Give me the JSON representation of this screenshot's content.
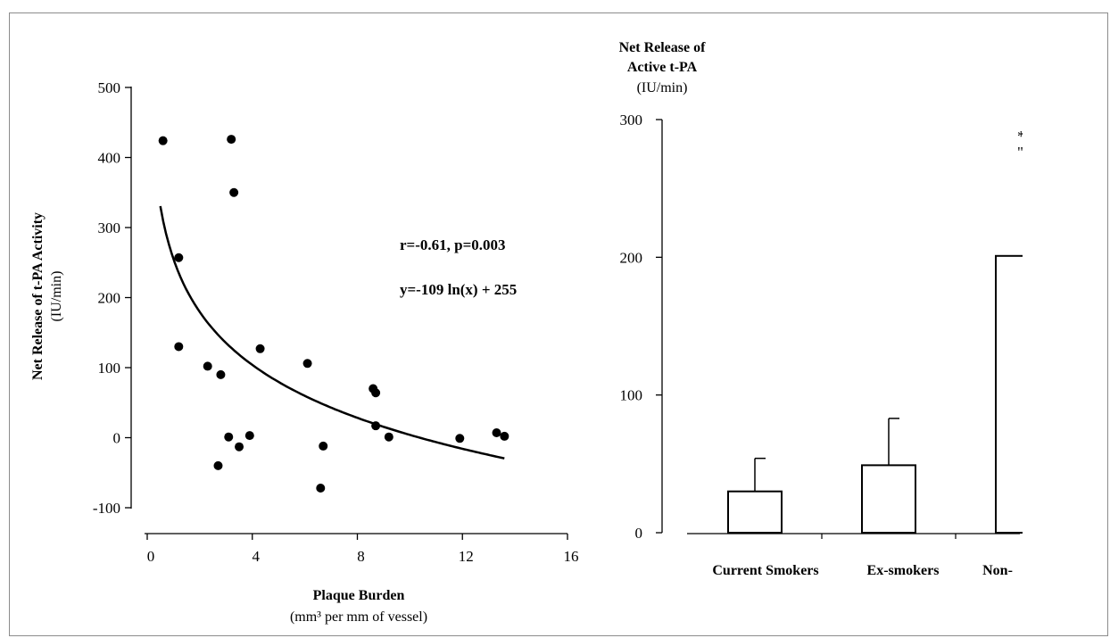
{
  "chart_data": [
    {
      "type": "scatter",
      "title": "",
      "xlabel": "Plaque Burden",
      "xlabel_unit": "(mm³ per mm of vessel)",
      "ylabel": "Net Release of t-PA Activity",
      "ylabel_unit": "(IU/min)",
      "xlim": [
        0,
        16
      ],
      "ylim": [
        -100,
        500
      ],
      "xticks": [
        "0",
        "4",
        "8",
        "12",
        "16"
      ],
      "yticks": [
        "500",
        "400",
        "300",
        "200",
        "100",
        "0",
        "-100"
      ],
      "annotation_1": "r=-0.61, p=0.003",
      "annotation_2": "y=-109 ln(x) + 255",
      "grid": false,
      "points": [
        {
          "x": 0.6,
          "y": 424
        },
        {
          "x": 3.2,
          "y": 426
        },
        {
          "x": 3.3,
          "y": 350
        },
        {
          "x": 1.2,
          "y": 257
        },
        {
          "x": 1.2,
          "y": 130
        },
        {
          "x": 2.3,
          "y": 102
        },
        {
          "x": 2.8,
          "y": 90
        },
        {
          "x": 4.3,
          "y": 127
        },
        {
          "x": 6.1,
          "y": 106
        },
        {
          "x": 8.6,
          "y": 70
        },
        {
          "x": 8.7,
          "y": 64
        },
        {
          "x": 8.7,
          "y": 17
        },
        {
          "x": 9.2,
          "y": 1
        },
        {
          "x": 11.9,
          "y": -1
        },
        {
          "x": 13.3,
          "y": 7
        },
        {
          "x": 13.6,
          "y": 2
        },
        {
          "x": 3.1,
          "y": 1
        },
        {
          "x": 3.9,
          "y": 3
        },
        {
          "x": 3.5,
          "y": -13
        },
        {
          "x": 2.7,
          "y": -40
        },
        {
          "x": 6.7,
          "y": -12
        },
        {
          "x": 6.6,
          "y": -72
        }
      ],
      "fit": {
        "type": "log",
        "a": -109,
        "b": 255,
        "x_from": 0.5,
        "x_to": 13.6
      }
    },
    {
      "type": "bar",
      "title": "Net Release of Active t-PA",
      "ylabel_unit": "(IU/min)",
      "ylim": [
        0,
        300
      ],
      "yticks": [
        "300",
        "200",
        "100",
        "0"
      ],
      "grid": false,
      "categories": [
        "Current Smokers",
        "Ex-smokers",
        "Non-"
      ],
      "values": [
        30,
        49,
        201
      ],
      "error_upper": [
        54,
        83,
        null
      ],
      "partial_marks": [
        "*",
        "\""
      ]
    }
  ]
}
